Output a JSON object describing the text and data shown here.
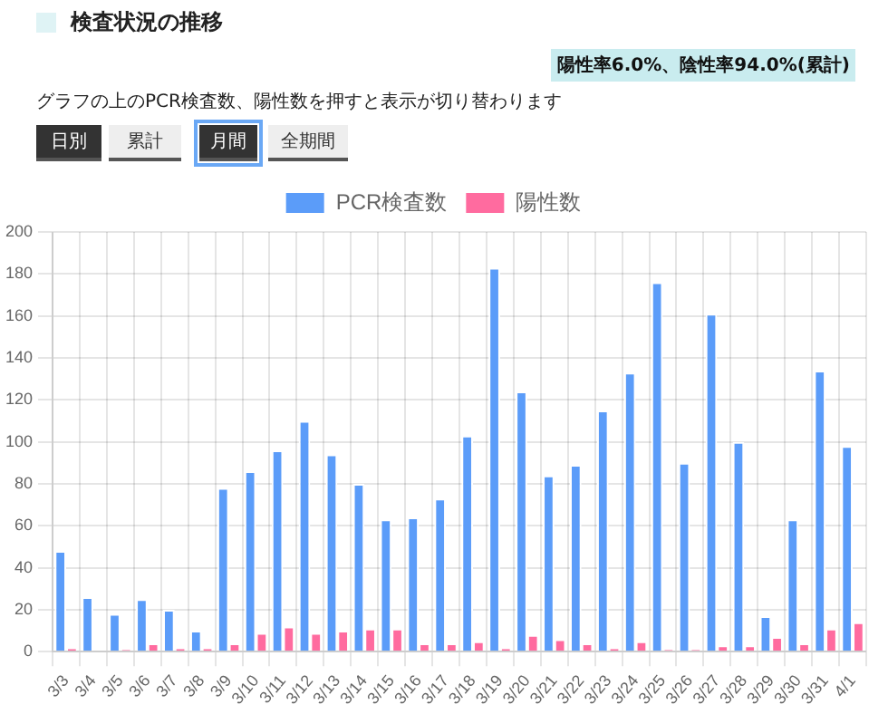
{
  "chart_data": {
    "type": "bar",
    "title": "検査状況の推移",
    "annotations": [
      "陽性率6.0%、陰性率94.0%(累計)",
      "グラフの上のPCR検査数、陽性数を押すと表示が切り替わります",
      "日別",
      "累計",
      "月間",
      "全期間"
    ],
    "categories": [
      "3/3",
      "3/4",
      "3/5",
      "3/6",
      "3/7",
      "3/8",
      "3/9",
      "3/10",
      "3/11",
      "3/12",
      "3/13",
      "3/14",
      "3/15",
      "3/16",
      "3/17",
      "3/18",
      "3/19",
      "3/20",
      "3/21",
      "3/22",
      "3/23",
      "3/24",
      "3/25",
      "3/26",
      "3/27",
      "3/28",
      "3/29",
      "3/30",
      "3/31",
      "4/1"
    ],
    "series": [
      {
        "name": "PCR検査数",
        "color": "#5b9cf9",
        "values": [
          48,
          26,
          18,
          25,
          20,
          10,
          78,
          86,
          96,
          110,
          94,
          80,
          63,
          64,
          73,
          103,
          183,
          124,
          84,
          89,
          115,
          133,
          176,
          90,
          161,
          100,
          17,
          63,
          134,
          98
        ]
      },
      {
        "name": "陽性数",
        "color": "#ff6b9f",
        "values": [
          2,
          0,
          1,
          4,
          2,
          2,
          4,
          9,
          12,
          9,
          10,
          11,
          11,
          4,
          4,
          5,
          2,
          8,
          6,
          4,
          2,
          5,
          1,
          1,
          3,
          3,
          7,
          4,
          11,
          14
        ]
      }
    ],
    "ylim": [
      0,
      200
    ],
    "yticks": [
      0,
      20,
      40,
      60,
      80,
      100,
      120,
      140,
      160,
      180,
      200
    ],
    "grid": true,
    "legend": "top"
  }
}
